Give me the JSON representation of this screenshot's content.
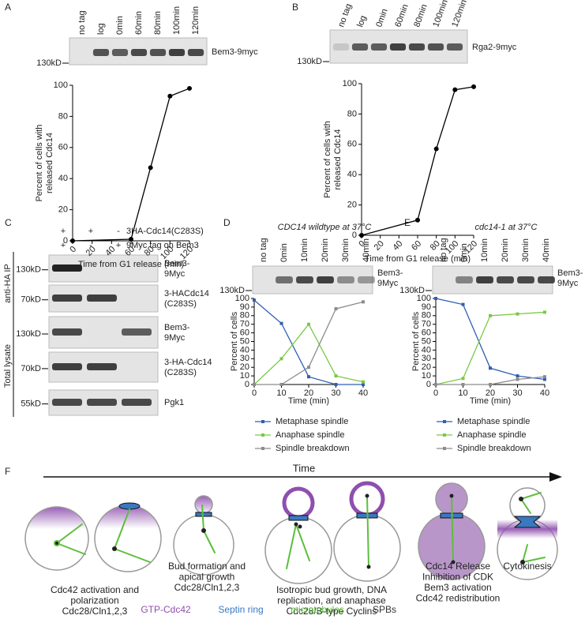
{
  "chart_data": [
    {
      "type": "line",
      "xlabel": "Time from G1 release (min)",
      "ylabel": [
        "Percent of cells with",
        "released Cdc14"
      ],
      "x": [
        0,
        60,
        80,
        100,
        120
      ],
      "values": [
        0,
        1,
        47,
        93,
        98
      ],
      "color": "#000000",
      "xlim": [
        0,
        120
      ],
      "xticks": [
        0,
        20,
        40,
        60,
        80,
        100,
        120
      ],
      "ylim": [
        0,
        100
      ],
      "yticks": [
        0,
        20,
        40,
        60,
        80,
        100
      ]
    },
    {
      "type": "line",
      "xlabel": "Time from G1 release (min)",
      "ylabel": [
        "Percent of cells with",
        "released Cdc14"
      ],
      "x": [
        0,
        60,
        80,
        100,
        120
      ],
      "values": [
        0,
        10,
        57,
        96,
        98
      ],
      "color": "#000000",
      "xlim": [
        0,
        120
      ],
      "xticks": [
        0,
        20,
        40,
        60,
        80,
        100,
        120
      ],
      "ylim": [
        0,
        100
      ],
      "yticks": [
        0,
        20,
        40,
        60,
        80,
        100
      ]
    },
    {
      "type": "line",
      "title": "CDC14 wildtype at 37°C",
      "xlabel": "Time (min)",
      "ylabel": "Percent of cells",
      "x": [
        0,
        10,
        20,
        30,
        40
      ],
      "series": [
        {
          "name": "Metaphase spindle",
          "color": "#2f5fb3",
          "values": [
            98,
            71,
            9,
            0,
            0
          ]
        },
        {
          "name": "Anaphase spindle",
          "color": "#7ac943",
          "values": [
            0,
            30,
            70,
            10,
            3
          ]
        },
        {
          "name": "Spindle breakdown",
          "color": "#8c8c8c",
          "values": [
            0,
            0,
            20,
            88,
            96
          ]
        }
      ],
      "xlim": [
        0,
        40
      ],
      "xticks": [
        0,
        10,
        20,
        30,
        40
      ],
      "ylim": [
        0,
        100
      ],
      "yticks": [
        0,
        10,
        20,
        30,
        40,
        50,
        60,
        70,
        80,
        90,
        100
      ]
    },
    {
      "type": "line",
      "title": "cdc14-1 at 37°C",
      "xlabel": "Time (min)",
      "ylabel": "Percent of cells",
      "x": [
        0,
        10,
        20,
        30,
        40
      ],
      "series": [
        {
          "name": "Metaphase spindle",
          "color": "#2f5fb3",
          "values": [
            100,
            93,
            19,
            10,
            6
          ]
        },
        {
          "name": "Anaphase spindle",
          "color": "#7ac943",
          "values": [
            0,
            7,
            80,
            82,
            84
          ]
        },
        {
          "name": "Spindle breakdown",
          "color": "#8c8c8c",
          "values": [
            0,
            0,
            0,
            6,
            9
          ]
        }
      ],
      "xlim": [
        0,
        40
      ],
      "xticks": [
        0,
        10,
        20,
        30,
        40
      ],
      "ylim": [
        0,
        100
      ],
      "yticks": [
        0,
        10,
        20,
        30,
        40,
        50,
        60,
        70,
        80,
        90,
        100
      ]
    }
  ],
  "panel_a": {
    "label": "A",
    "lanes": [
      "no tag",
      "log",
      "0min",
      "60min",
      "80min",
      "100min",
      "120min"
    ],
    "band_label": "Bem3-9myc",
    "marker": "130kD"
  },
  "panel_b": {
    "label": "B",
    "lanes": [
      "no tag",
      "log",
      "0min",
      "60min",
      "80min",
      "100min",
      "120min"
    ],
    "band_label": "Rga2-9myc",
    "marker": "130kD"
  },
  "panel_c": {
    "label": "C",
    "conditions": [
      {
        "name": "3HA-Cdc14(C283S)",
        "lanes": [
          "+",
          "+",
          "-"
        ]
      },
      {
        "name": "9Myc tag on Bem3",
        "lanes": [
          "+",
          "-",
          "+"
        ]
      }
    ],
    "groups": [
      {
        "name": "anti-HA IP",
        "blots": [
          {
            "label": [
              "Bem3-",
              "9Myc"
            ],
            "marker": "130kD"
          },
          {
            "label": [
              "3-HACdc14",
              "(C283S)"
            ],
            "marker": "70kD"
          }
        ]
      },
      {
        "name": "Total lysate",
        "blots": [
          {
            "label": [
              "Bem3-",
              "9Myc"
            ],
            "marker": "130kD"
          },
          {
            "label": [
              "3-HA-Cdc14",
              "(C283S)"
            ],
            "marker": "70kD"
          },
          {
            "label": [
              "Pgk1"
            ],
            "marker": "55kD"
          }
        ]
      }
    ]
  },
  "panel_d": {
    "label": "D",
    "lanes": [
      "no tag",
      "0min",
      "10min",
      "20min",
      "30min",
      "40min"
    ],
    "band_label": [
      "Bem3-",
      "9Myc"
    ],
    "marker": "130kD"
  },
  "panel_e": {
    "label": "E",
    "lanes": [
      "no tag",
      "0min",
      "10min",
      "20min",
      "30min",
      "40min"
    ],
    "band_label": [
      "Bem3-",
      "9Myc"
    ],
    "marker": "130kD"
  },
  "panel_f": {
    "label": "F",
    "axis_label": "Time",
    "stages": [
      {
        "caption": [
          "Cdc42 activation and",
          "polarization",
          "Cdc28/Cln1,2,3"
        ]
      },
      {
        "caption": [
          "Bud formation and",
          "apical growth",
          "Cdc28/Cln1,2,3"
        ]
      },
      {
        "caption": [
          "Isotropic bud growth, DNA",
          "replication, and anaphase",
          "Cdc28/B-type Cyclins"
        ]
      },
      {
        "caption": [
          "Cdc14 Release",
          "Inhibition of CDK",
          "Bem3 activation",
          "Cdc42 redistribution"
        ]
      },
      {
        "caption": [
          "Cytokinesis"
        ]
      }
    ],
    "legend": [
      {
        "name": "GTP-Cdc42",
        "color": "#8e4fae"
      },
      {
        "name": "Septin ring",
        "color": "#3a78c2"
      },
      {
        "name": "microtubules",
        "color": "#5cbf3c"
      },
      {
        "name": "SPBs",
        "color": "#333333"
      }
    ]
  }
}
